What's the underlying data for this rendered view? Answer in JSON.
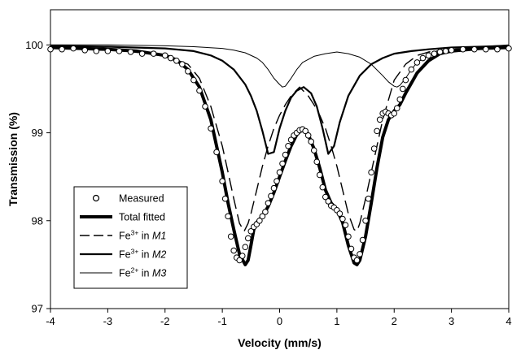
{
  "chart_data": {
    "type": "line",
    "title": "",
    "xlabel": "Velocity (mm/s)",
    "ylabel": "Transmission (%)",
    "xlim": [
      -4,
      4
    ],
    "ylim": [
      97,
      100.4
    ],
    "x_ticks": [
      -4,
      -3,
      -2,
      -1,
      0,
      1,
      2,
      3,
      4
    ],
    "y_ticks": [
      97,
      98,
      99,
      100
    ],
    "x_tick_labels": [
      "-4",
      "-3",
      "-2",
      "-1",
      "0",
      "1",
      "2",
      "3",
      "4"
    ],
    "y_tick_labels": [
      "97",
      "98",
      "99",
      "100"
    ],
    "grid": false,
    "legend_position": "lower-left",
    "baseline": 99.98,
    "series": [
      {
        "name": "Measured",
        "style": "open-circle-markers",
        "color": "#000000",
        "x": [
          -4.0,
          -3.8,
          -3.6,
          -3.4,
          -3.2,
          -3.0,
          -2.8,
          -2.6,
          -2.4,
          -2.2,
          -2.0,
          -1.9,
          -1.8,
          -1.7,
          -1.6,
          -1.5,
          -1.4,
          -1.3,
          -1.2,
          -1.1,
          -1.0,
          -0.95,
          -0.9,
          -0.85,
          -0.8,
          -0.75,
          -0.7,
          -0.65,
          -0.6,
          -0.55,
          -0.5,
          -0.45,
          -0.4,
          -0.35,
          -0.3,
          -0.25,
          -0.2,
          -0.15,
          -0.1,
          -0.05,
          0.0,
          0.05,
          0.1,
          0.15,
          0.2,
          0.25,
          0.3,
          0.35,
          0.4,
          0.45,
          0.5,
          0.55,
          0.6,
          0.65,
          0.7,
          0.75,
          0.8,
          0.85,
          0.9,
          0.95,
          1.0,
          1.05,
          1.1,
          1.15,
          1.2,
          1.25,
          1.3,
          1.35,
          1.4,
          1.45,
          1.5,
          1.55,
          1.6,
          1.65,
          1.7,
          1.75,
          1.8,
          1.85,
          1.9,
          1.95,
          2.0,
          2.05,
          2.1,
          2.15,
          2.2,
          2.3,
          2.4,
          2.5,
          2.6,
          2.7,
          2.8,
          2.9,
          3.0,
          3.2,
          3.4,
          3.6,
          3.8,
          4.0
        ],
        "values": [
          99.95,
          99.95,
          99.96,
          99.94,
          99.93,
          99.93,
          99.93,
          99.92,
          99.9,
          99.9,
          99.88,
          99.85,
          99.82,
          99.78,
          99.7,
          99.6,
          99.48,
          99.3,
          99.05,
          98.78,
          98.45,
          98.25,
          98.05,
          97.82,
          97.66,
          97.58,
          97.55,
          97.6,
          97.7,
          97.8,
          97.88,
          97.93,
          97.96,
          98.0,
          98.05,
          98.1,
          98.2,
          98.28,
          98.37,
          98.45,
          98.55,
          98.65,
          98.75,
          98.85,
          98.92,
          98.97,
          99.0,
          99.03,
          99.04,
          99.02,
          98.97,
          98.9,
          98.8,
          98.67,
          98.52,
          98.38,
          98.27,
          98.22,
          98.17,
          98.15,
          98.12,
          98.08,
          98.02,
          97.95,
          97.82,
          97.68,
          97.58,
          97.55,
          97.62,
          97.78,
          98.0,
          98.25,
          98.55,
          98.82,
          99.02,
          99.15,
          99.22,
          99.24,
          99.22,
          99.2,
          99.22,
          99.28,
          99.38,
          99.5,
          99.6,
          99.72,
          99.8,
          99.85,
          99.88,
          99.9,
          99.92,
          99.93,
          99.94,
          99.95,
          99.95,
          99.95,
          99.95,
          99.96
        ]
      },
      {
        "name": "Total fitted",
        "style": "thick-solid",
        "color": "#000000",
        "x": [
          -4.0,
          -3.5,
          -3.0,
          -2.5,
          -2.0,
          -1.8,
          -1.6,
          -1.4,
          -1.2,
          -1.0,
          -0.9,
          -0.8,
          -0.7,
          -0.6,
          -0.55,
          -0.5,
          -0.45,
          -0.4,
          -0.3,
          -0.2,
          -0.1,
          0.0,
          0.1,
          0.2,
          0.3,
          0.4,
          0.45,
          0.5,
          0.6,
          0.7,
          0.8,
          0.9,
          1.0,
          1.1,
          1.2,
          1.3,
          1.35,
          1.4,
          1.5,
          1.6,
          1.7,
          1.8,
          1.9,
          2.0,
          2.1,
          2.2,
          2.4,
          2.6,
          2.8,
          3.0,
          3.5,
          4.0
        ],
        "values": [
          99.97,
          99.96,
          99.95,
          99.93,
          99.88,
          99.83,
          99.72,
          99.52,
          99.15,
          98.55,
          98.2,
          97.9,
          97.62,
          97.5,
          97.55,
          97.72,
          97.9,
          97.98,
          98.05,
          98.16,
          98.32,
          98.5,
          98.68,
          98.85,
          98.98,
          99.04,
          99.03,
          98.98,
          98.82,
          98.6,
          98.35,
          98.2,
          98.13,
          97.98,
          97.72,
          97.52,
          97.5,
          97.55,
          97.82,
          98.2,
          98.6,
          98.95,
          99.15,
          99.25,
          99.32,
          99.45,
          99.68,
          99.82,
          99.9,
          99.93,
          99.96,
          99.97
        ]
      },
      {
        "name": "Fe3+ in M1",
        "style": "long-dash",
        "color": "#000000",
        "x": [
          -4.0,
          -3.0,
          -2.0,
          -1.6,
          -1.4,
          -1.2,
          -1.0,
          -0.9,
          -0.8,
          -0.7,
          -0.62,
          -0.55,
          -0.5,
          -0.4,
          -0.3,
          -0.2,
          -0.1,
          0.0,
          0.1,
          0.2,
          0.35,
          0.5,
          0.6,
          0.7,
          0.8,
          0.9,
          1.0,
          1.1,
          1.2,
          1.3,
          1.35,
          1.4,
          1.5,
          1.6,
          1.7,
          1.8,
          2.0,
          2.2,
          2.4,
          2.6,
          3.0,
          4.0
        ],
        "values": [
          99.98,
          99.95,
          99.88,
          99.78,
          99.62,
          99.3,
          98.85,
          98.55,
          98.25,
          97.97,
          97.88,
          97.97,
          98.08,
          98.35,
          98.62,
          98.85,
          99.05,
          99.2,
          99.32,
          99.42,
          99.52,
          99.42,
          99.32,
          99.2,
          99.05,
          98.85,
          98.62,
          98.35,
          98.08,
          97.9,
          97.88,
          97.97,
          98.25,
          98.55,
          98.85,
          99.15,
          99.6,
          99.78,
          99.88,
          99.92,
          99.95,
          99.98
        ]
      },
      {
        "name": "Fe3+ in M2",
        "style": "medium-solid",
        "color": "#000000",
        "x": [
          -4.0,
          -3.0,
          -2.0,
          -1.5,
          -1.2,
          -1.0,
          -0.8,
          -0.6,
          -0.5,
          -0.4,
          -0.3,
          -0.2,
          -0.1,
          0.0,
          0.1,
          0.2,
          0.3,
          0.42,
          0.55,
          0.65,
          0.75,
          0.85,
          0.95,
          1.05,
          1.2,
          1.4,
          1.6,
          1.8,
          2.0,
          2.3,
          2.6,
          3.0,
          3.5,
          4.0
        ],
        "values": [
          99.99,
          99.98,
          99.96,
          99.93,
          99.88,
          99.82,
          99.72,
          99.55,
          99.42,
          99.25,
          99.02,
          98.76,
          98.78,
          99.05,
          99.25,
          99.4,
          99.48,
          99.52,
          99.45,
          99.3,
          99.05,
          98.76,
          98.85,
          99.12,
          99.42,
          99.65,
          99.78,
          99.85,
          99.9,
          99.93,
          99.95,
          99.97,
          99.98,
          99.99
        ]
      },
      {
        "name": "Fe2+ in M3",
        "style": "thin-solid",
        "color": "#000000",
        "x": [
          -4.0,
          -3.0,
          -2.0,
          -1.5,
          -1.0,
          -0.8,
          -0.6,
          -0.4,
          -0.3,
          -0.2,
          -0.1,
          0.0,
          0.05,
          0.1,
          0.2,
          0.3,
          0.4,
          0.6,
          0.8,
          1.0,
          1.2,
          1.4,
          1.6,
          1.8,
          1.9,
          2.0,
          2.05,
          2.1,
          2.2,
          2.3,
          2.4,
          2.6,
          3.0,
          3.5,
          4.0
        ],
        "values": [
          100.0,
          100.0,
          99.99,
          99.98,
          99.96,
          99.94,
          99.91,
          99.85,
          99.8,
          99.72,
          99.62,
          99.55,
          99.52,
          99.53,
          99.62,
          99.72,
          99.8,
          99.87,
          99.9,
          99.92,
          99.9,
          99.86,
          99.78,
          99.65,
          99.58,
          99.53,
          99.52,
          99.54,
          99.62,
          99.72,
          99.8,
          99.88,
          99.95,
          99.98,
          100.0
        ]
      }
    ],
    "legend": [
      {
        "pre": "Measured",
        "sup": "",
        "mid": "",
        "site": "",
        "style": "open-circle-markers"
      },
      {
        "pre": "Total fitted",
        "sup": "",
        "mid": "",
        "site": "",
        "style": "thick-solid"
      },
      {
        "pre": "Fe",
        "sup": "3+",
        "mid": " in ",
        "site": "M1",
        "style": "long-dash"
      },
      {
        "pre": "Fe",
        "sup": "3+",
        "mid": " in ",
        "site": "M2",
        "style": "medium-solid"
      },
      {
        "pre": "Fe",
        "sup": "2+",
        "mid": " in ",
        "site": "M3",
        "style": "thin-solid"
      }
    ]
  }
}
